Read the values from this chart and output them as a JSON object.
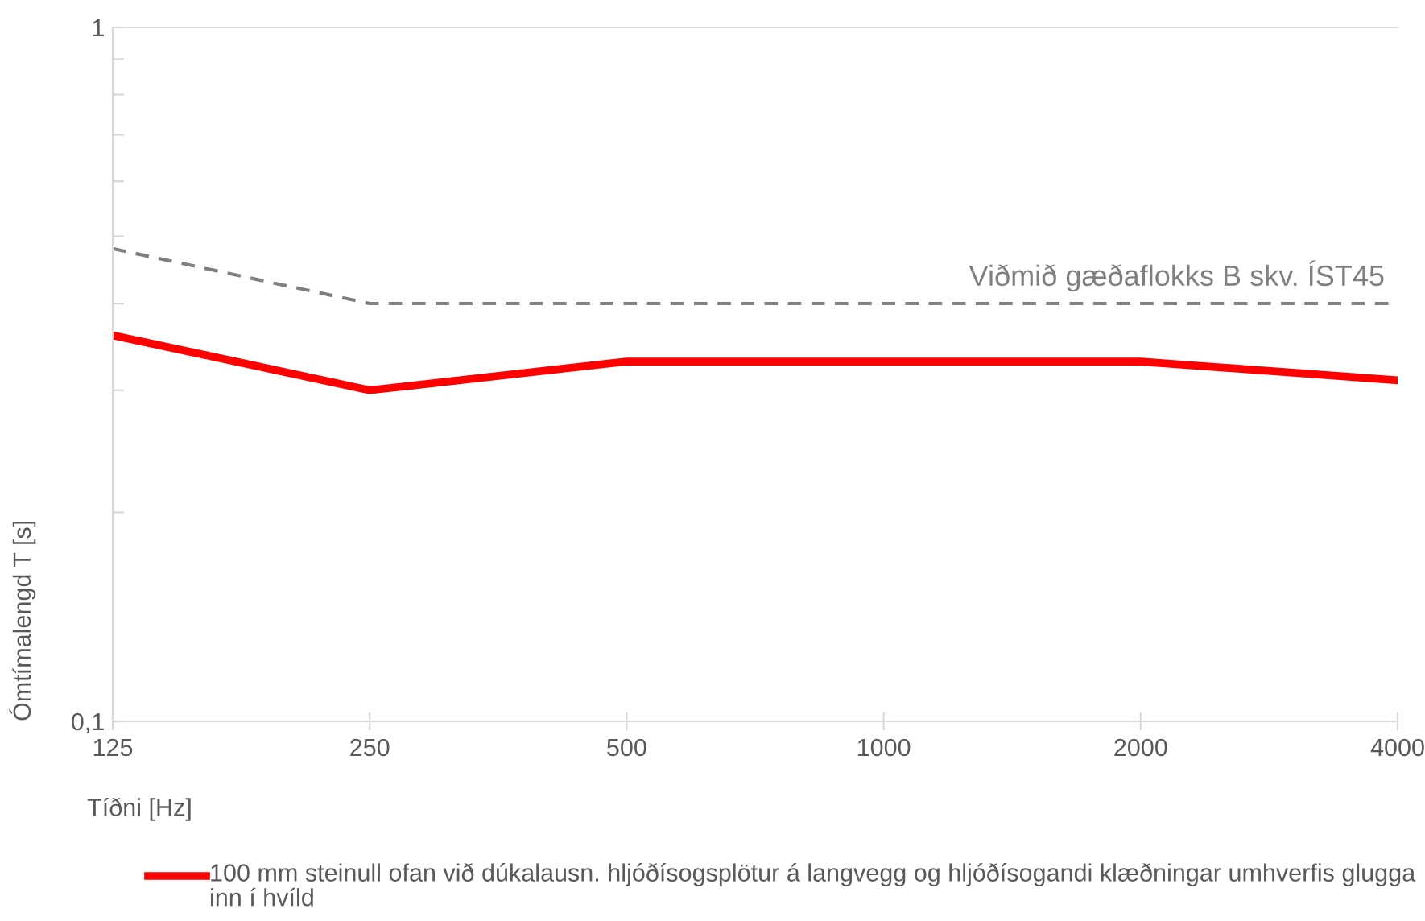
{
  "chart_data": {
    "type": "line",
    "xlabel": "Tíðni [Hz]",
    "ylabel": "Ómtímalengd T [s]",
    "categories": [
      "125",
      "250",
      "500",
      "1000",
      "2000",
      "4000"
    ],
    "series": [
      {
        "name": "100 mm steinull ofan við dúkalausn. hljóðísogsplötur á langvegg og hljóðísogandi klæðningar umhverfis glugga inn í hvíld",
        "color": "#ff0000",
        "values": [
          0.36,
          0.3,
          0.33,
          0.33,
          0.33,
          0.31
        ],
        "line_style": "solid"
      },
      {
        "name": "Viðmið gæðaflokks B skv. ÍST45",
        "color": "#7f7f7f",
        "values": [
          0.48,
          0.4,
          0.4,
          0.4,
          0.4,
          0.4
        ],
        "line_style": "dashed"
      }
    ],
    "log": "y",
    "ylim": [
      0.1,
      1
    ],
    "yticks": [
      {
        "value": 0.1,
        "label": "0,1"
      },
      {
        "value": 0.2,
        "label": null
      },
      {
        "value": 0.3,
        "label": null
      },
      {
        "value": 0.4,
        "label": null
      },
      {
        "value": 0.5,
        "label": null
      },
      {
        "value": 0.6,
        "label": null
      },
      {
        "value": 0.7,
        "label": null
      },
      {
        "value": 0.8,
        "label": null
      },
      {
        "value": 0.9,
        "label": null
      },
      1
    ],
    "grid": false,
    "legend": "bottom",
    "marker": "none"
  }
}
